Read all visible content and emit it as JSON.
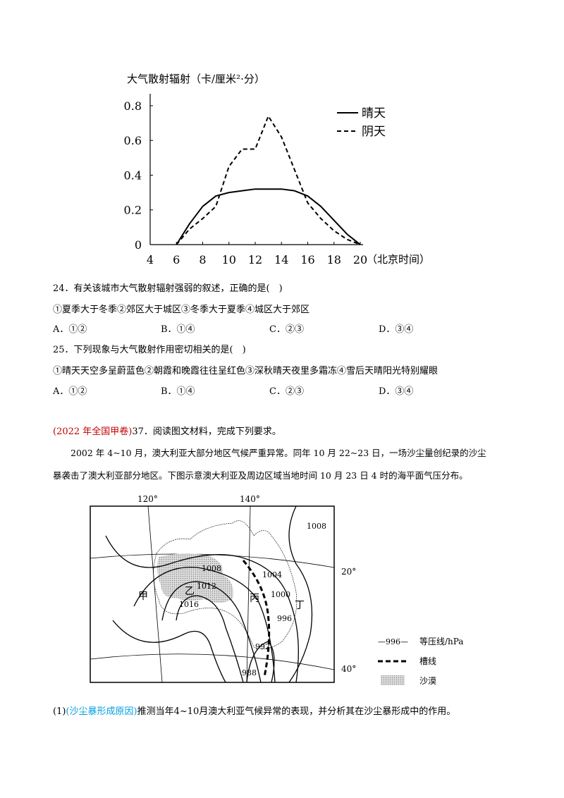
{
  "chart_data": {
    "type": "line",
    "y_label": "大气散射辐射（卡/厘米²·分）",
    "x_label": "（北京时间）",
    "x": [
      6,
      7,
      8,
      9,
      10,
      11,
      12,
      13,
      14,
      15,
      16,
      17,
      18,
      19,
      20
    ],
    "series": [
      {
        "name": "晴天",
        "color": "#000000",
        "dash": "solid",
        "values": [
          0,
          0.12,
          0.22,
          0.28,
          0.3,
          0.31,
          0.32,
          0.32,
          0.32,
          0.31,
          0.28,
          0.22,
          0.14,
          0.06,
          0
        ]
      },
      {
        "name": "阴天",
        "color": "#000000",
        "dash": "dashed",
        "values": [
          0,
          0.09,
          0.15,
          0.22,
          0.45,
          0.55,
          0.55,
          0.74,
          0.62,
          0.43,
          0.24,
          0.15,
          0.08,
          0.03,
          0
        ]
      }
    ],
    "xlim": [
      4,
      20
    ],
    "xticks": [
      4,
      6,
      8,
      10,
      12,
      14,
      16,
      18,
      20
    ],
    "ylim": [
      0,
      0.86
    ],
    "yticks": [
      0,
      0.2,
      0.4,
      0.6,
      0.8
    ],
    "grid": false,
    "legend": "upper right"
  },
  "questions": [
    {
      "stem": "24．有关该城市大气散射辐射强弱的叙述，正确的是(　)",
      "statements": "①夏季大于冬季②郊区大于城区③冬季大于夏季④城区大于郊区",
      "options": [
        "A．①②",
        "B．①④",
        "C．②③",
        "D．③④"
      ]
    },
    {
      "stem": "25．下列现象与大气散射作用密切相关的是(　)",
      "statements": "①晴天天空多呈蔚蓝色②朝霞和晚霞往往呈红色③深秋晴天夜里多霜冻④雪后天晴阳光特别耀眼",
      "options": [
        "A．①②",
        "B．①④",
        "C．②③",
        "D．③④"
      ]
    }
  ],
  "material": {
    "source": "(2022 年全国甲卷)",
    "intro": "37．阅读图文材料，完成下列要求。",
    "lines": [
      "2002 年 4~10 月，澳大利亚大部分地区气候严重异常。同年 10 月 22~23 日，一场沙尘量创纪录的沙尘",
      "暴袭击了澳大利亚部分地区。下图示意澳大利亚及周边区域当地时间 10 月 23 日 4 时的海平面气压分布。"
    ]
  },
  "map": {
    "longitudes": [
      "120°",
      "140°"
    ],
    "latitudes": [
      "20°",
      "40°"
    ],
    "isobars": [
      "1008",
      "1008",
      "1004",
      "1012",
      "1000",
      "1016",
      "996",
      "992",
      "988"
    ],
    "regions": [
      "甲",
      "乙",
      "丙",
      "丁"
    ],
    "legend": {
      "isobar_sample": "—996—",
      "isobar": "等压线/hPa",
      "trough": "槽线",
      "desert": "沙漠"
    }
  },
  "subquestion": {
    "number": "(1)",
    "tag": "(沙尘暴形成原因)",
    "text": "推测当年4~10月澳大利亚气候异常的表现，并分析其在沙尘暴形成中的作用。"
  }
}
